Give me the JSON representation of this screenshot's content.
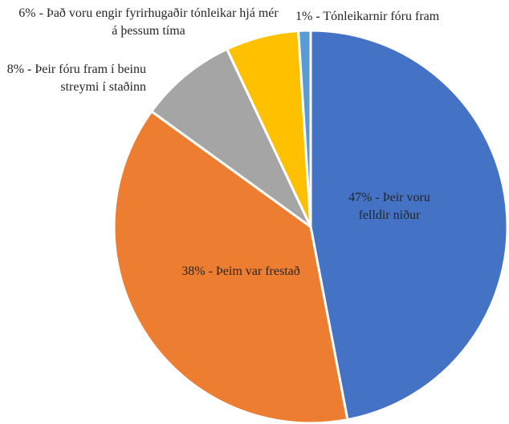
{
  "chart_data": {
    "type": "pie",
    "values": [
      47,
      38,
      8,
      6,
      1
    ],
    "value_labels": [
      "47% - Þeir voru felldir niður",
      "38% - Þeim var frestað",
      "8% - Þeir fóru fram í beinu streymi í staðinn",
      "6% - Það voru engir fyrirhugaðir tónleikar hjá mér á þessum tíma",
      "1% - Tónleikarnir fóru fram"
    ],
    "colors": [
      "#4472c4",
      "#ed7d31",
      "#a5a5a5",
      "#ffc000",
      "#5b9bd5"
    ],
    "start_angle": 0,
    "direction": "clockwise"
  }
}
